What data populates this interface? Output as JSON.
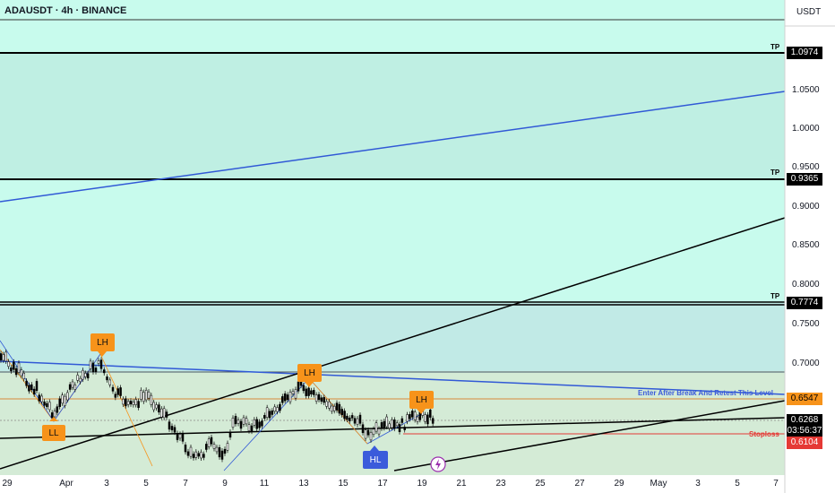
{
  "header": {
    "symbol_line": "ADAUSDT · 4h · BINANCE",
    "currency": "USDT"
  },
  "price_axis": {
    "ticks": [
      "1.0500",
      "1.0000",
      "0.9500",
      "0.9000",
      "0.8500",
      "0.8000",
      "0.7500",
      "0.7000"
    ]
  },
  "time_axis": {
    "ticks": [
      "29",
      "Apr",
      "3",
      "5",
      "7",
      "9",
      "11",
      "13",
      "15",
      "17",
      "19",
      "21",
      "23",
      "25",
      "27",
      "29",
      "May",
      "3",
      "5",
      "7"
    ]
  },
  "levels": [
    {
      "tag": "TP",
      "price": "1.0974"
    },
    {
      "tag": "TP",
      "price": "0.9365"
    },
    {
      "tag": "TP",
      "price": "0.7774"
    }
  ],
  "markers": {
    "entry": "0.6547",
    "last": "0.6268",
    "countdown": "03:56:37",
    "stoploss": "0.6104"
  },
  "annotations": {
    "entry_note": "Enter After Break And Retest This Level",
    "stop_note": "Stoploss"
  },
  "swings": [
    {
      "label": "LL",
      "color": "#f7931a"
    },
    {
      "label": "LH",
      "color": "#f7931a"
    },
    {
      "label": "LH",
      "color": "#f7931a"
    },
    {
      "label": "HL",
      "color": "#3b5bdb"
    },
    {
      "label": "LH",
      "color": "#f7931a"
    }
  ],
  "colors": {
    "tp_zone": "#c4ede6",
    "lower_zone": "#d7ebd8",
    "bg": "#c8fbed",
    "up": "#000000",
    "down": "#000000",
    "trend_blue": "#3159d6",
    "stop": "#e53935",
    "entry": "#f7931a"
  }
}
